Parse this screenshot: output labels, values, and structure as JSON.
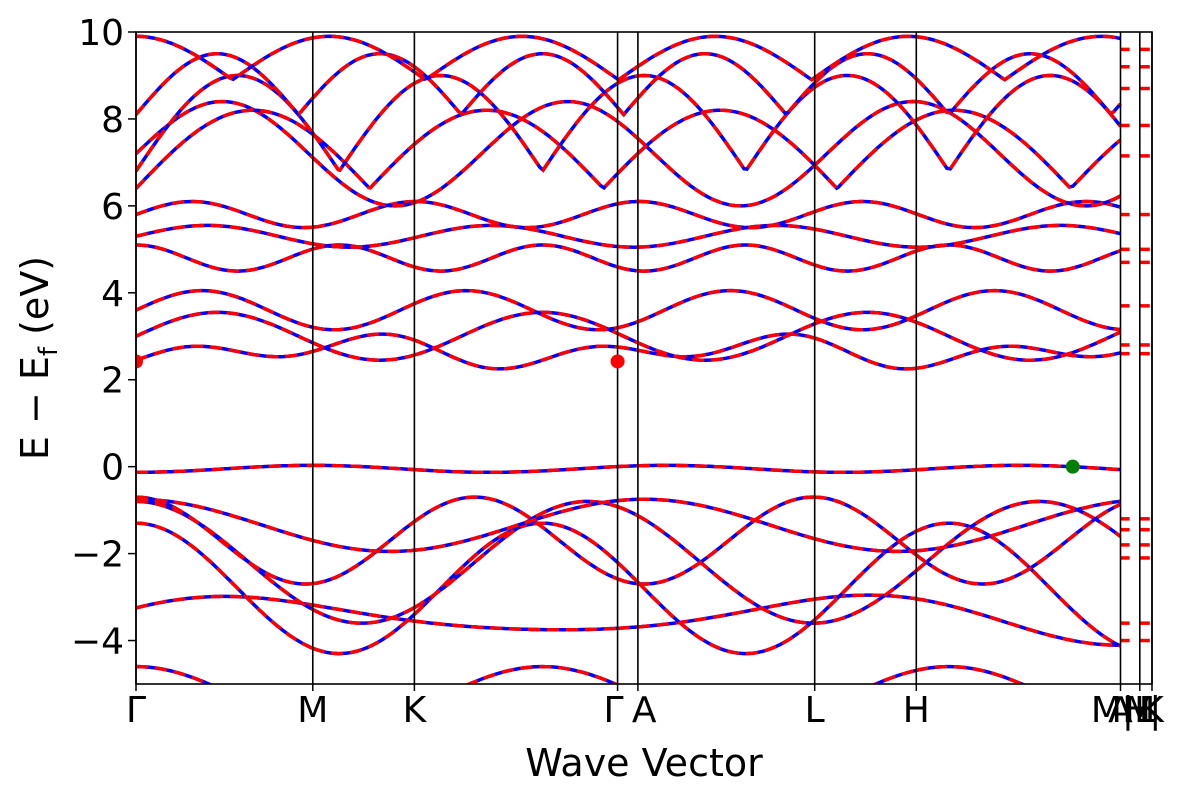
{
  "chart_data": {
    "type": "line",
    "title": "",
    "xlabel": "Wave Vector",
    "ylabel_parts": {
      "main": "E − E",
      "sub": "f",
      "unit": " (eV)"
    },
    "ylim": [
      -5,
      10
    ],
    "yticks": [
      -4,
      -2,
      0,
      2,
      4,
      6,
      8,
      10
    ],
    "ytick_labels": [
      "−4",
      "−2",
      "0",
      "2",
      "4",
      "6",
      "8",
      "10"
    ],
    "xlim": [
      0,
      10
    ],
    "kpoint_positions": [
      0,
      1.74,
      2.74,
      4.74,
      4.94,
      6.68,
      7.68,
      9.69,
      9.88,
      10.0
    ],
    "kpoint_labels": [
      "Γ",
      "M",
      "K",
      "Γ",
      "A",
      "L",
      "H",
      "A",
      "M",
      "K"
    ],
    "extra_labels": [
      {
        "x": 9.69,
        "text": "M|L"
      },
      {
        "x": 9.88,
        "text": "H|"
      }
    ],
    "colors": {
      "dft": "#0000ff",
      "wannier": "#ff0000",
      "vbm": "#008000",
      "cbm": "#ff0000"
    },
    "markers": [
      {
        "name": "cbm",
        "x": 0.0,
        "y": 2.42,
        "color": "#ff0000"
      },
      {
        "name": "cbm",
        "x": 4.74,
        "y": 2.42,
        "color": "#ff0000"
      },
      {
        "name": "vbm",
        "x": 9.22,
        "y": 0.0,
        "color": "#008000"
      }
    ],
    "grid": false,
    "legend": "none"
  }
}
